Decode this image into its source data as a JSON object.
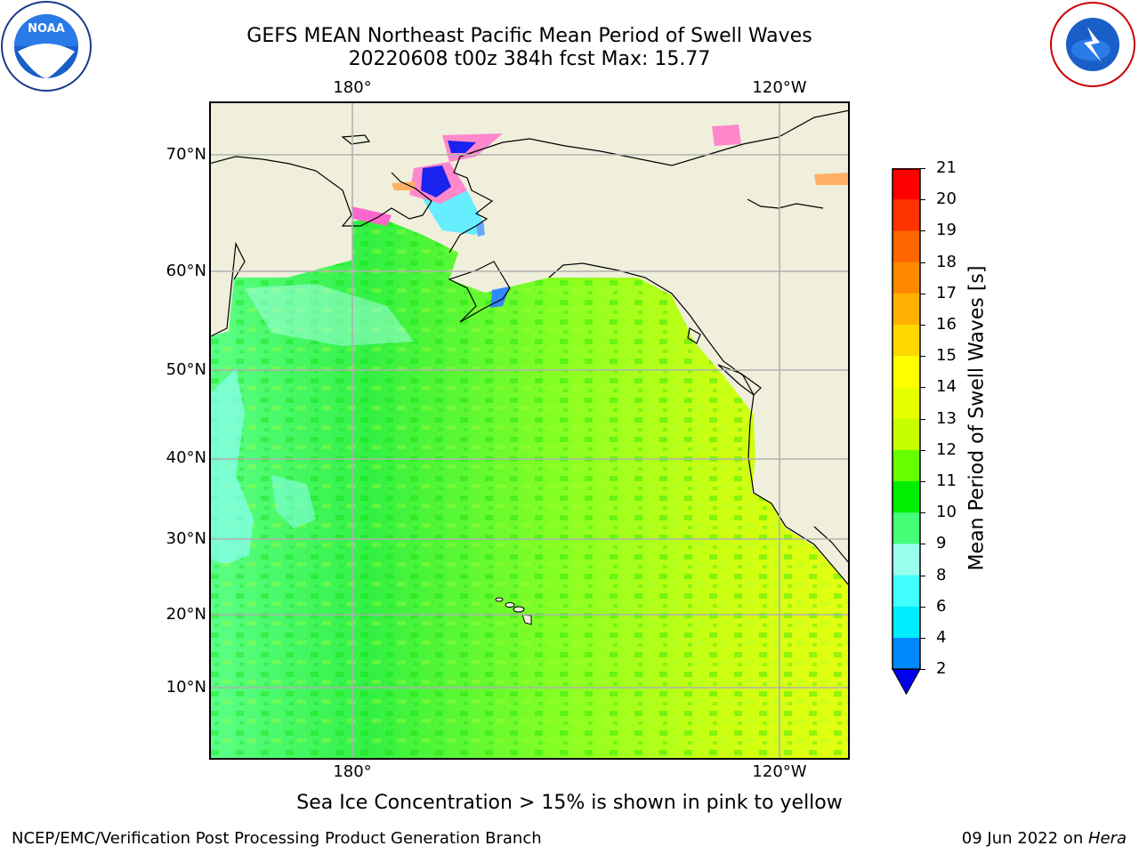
{
  "header": {
    "title_line1": "GEFS MEAN Northeast Pacific Mean Period of Swell Waves",
    "title_line2": "20220608 t00z 384h fcst   Max: 15.77"
  },
  "logos": {
    "left": "NOAA",
    "right": "NATIONAL WEATHER SERVICE"
  },
  "map": {
    "lon_labels_top": [
      "180°",
      "120°W"
    ],
    "lon_labels_bottom": [
      "180°",
      "120°W"
    ],
    "lat_labels": [
      "70°N",
      "60°N",
      "50°N",
      "40°N",
      "30°N",
      "20°N",
      "10°N"
    ],
    "land_color": "#efefdc",
    "grid_color": "#b0b0b0"
  },
  "colorbar": {
    "label": "Mean Period of Swell Waves [s]",
    "ticks": [
      "21",
      "20",
      "19",
      "18",
      "17",
      "16",
      "15",
      "14",
      "13",
      "12",
      "11",
      "10",
      "9",
      "8",
      "6",
      "4",
      "2"
    ],
    "colors": [
      "#ff0000",
      "#ff3300",
      "#ff6600",
      "#ff8800",
      "#ffb000",
      "#ffd800",
      "#ffff00",
      "#e8ff00",
      "#c8ff00",
      "#66ff00",
      "#00ee00",
      "#44ff77",
      "#99ffee",
      "#44ffff",
      "#00eeff",
      "#0088ff",
      "#0000ee"
    ]
  },
  "caption": "Sea Ice Concentration > 15% is shown in pink to yellow",
  "footer": {
    "left": "NCEP/EMC/Verification Post Processing Product Generation Branch",
    "right_prefix": "09 Jun 2022 on ",
    "right_host": "Hera"
  }
}
